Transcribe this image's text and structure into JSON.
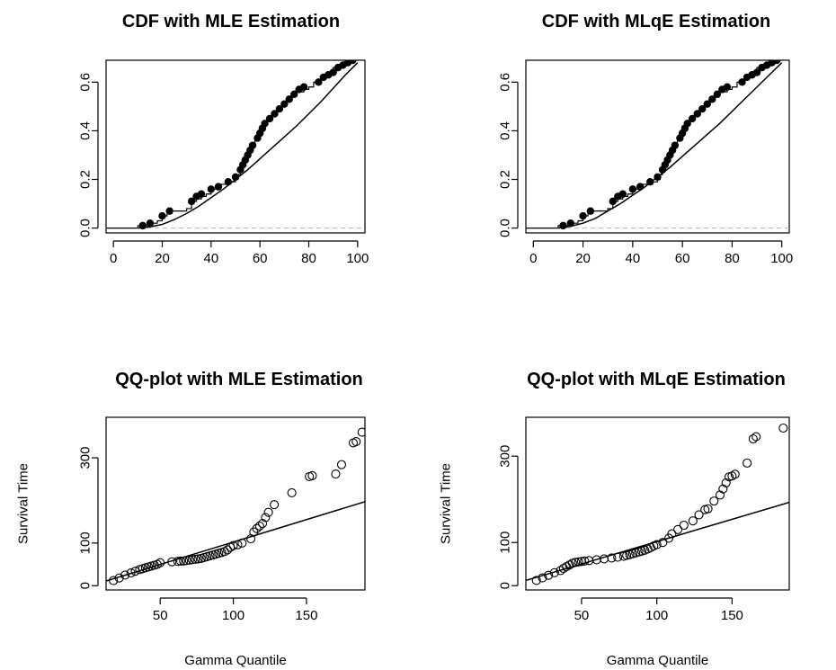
{
  "chart_data": [
    {
      "type": "line",
      "title": "CDF with MLE Estimation",
      "xlabel": "",
      "ylabel": "",
      "xlim": [
        -3,
        103
      ],
      "ylim": [
        -0.02,
        0.69
      ],
      "xticks": [
        0,
        20,
        40,
        60,
        80,
        100
      ],
      "yticks": [
        0.0,
        0.2,
        0.4,
        0.6
      ],
      "ytick_labels": [
        "0.0",
        "0.2",
        "0.4",
        "0.6"
      ],
      "baseline": 0.0,
      "empirical_step": {
        "x": [
          10,
          14,
          16,
          18,
          20,
          22,
          24,
          26,
          28,
          30,
          32,
          34,
          36,
          38,
          40,
          42,
          44,
          46,
          48,
          50,
          51,
          52,
          53,
          54,
          55,
          56,
          57,
          58,
          59,
          60,
          62,
          64,
          66,
          68,
          70,
          72,
          74,
          76,
          78,
          80,
          82,
          84,
          86,
          88,
          90,
          92,
          94,
          96,
          98,
          100
        ],
        "y": [
          0.01,
          0.02,
          0.02,
          0.03,
          0.05,
          0.06,
          0.07,
          0.07,
          0.07,
          0.08,
          0.11,
          0.12,
          0.13,
          0.14,
          0.16,
          0.17,
          0.18,
          0.18,
          0.19,
          0.2,
          0.22,
          0.24,
          0.26,
          0.28,
          0.3,
          0.32,
          0.34,
          0.37,
          0.39,
          0.42,
          0.44,
          0.46,
          0.48,
          0.5,
          0.52,
          0.54,
          0.56,
          0.56,
          0.57,
          0.58,
          0.6,
          0.61,
          0.62,
          0.64,
          0.66,
          0.67,
          0.68,
          0.69,
          0.69,
          0.69
        ]
      },
      "points": {
        "x": [
          12,
          15,
          20,
          23,
          32,
          34,
          36,
          40,
          43,
          47,
          50,
          52,
          53,
          54,
          55,
          56,
          57,
          59,
          60,
          61,
          62,
          64,
          66,
          68,
          70,
          72,
          74,
          76,
          78,
          84,
          86,
          88,
          90,
          92,
          94,
          96,
          98
        ],
        "y": [
          0.01,
          0.02,
          0.05,
          0.07,
          0.11,
          0.13,
          0.14,
          0.16,
          0.17,
          0.19,
          0.21,
          0.24,
          0.26,
          0.28,
          0.3,
          0.32,
          0.34,
          0.37,
          0.39,
          0.41,
          0.43,
          0.45,
          0.47,
          0.49,
          0.51,
          0.53,
          0.55,
          0.57,
          0.58,
          0.6,
          0.62,
          0.63,
          0.64,
          0.66,
          0.67,
          0.68,
          0.69
        ]
      },
      "fitted": {
        "x": [
          10,
          15,
          20,
          25,
          30,
          35,
          40,
          45,
          50,
          55,
          60,
          65,
          70,
          75,
          80,
          85,
          90,
          95,
          100
        ],
        "y": [
          0.0,
          0.005,
          0.015,
          0.035,
          0.06,
          0.09,
          0.125,
          0.16,
          0.2,
          0.24,
          0.285,
          0.33,
          0.375,
          0.42,
          0.47,
          0.52,
          0.575,
          0.63,
          0.68
        ]
      }
    },
    {
      "type": "line",
      "title": "CDF with MLqE Estimation",
      "xlabel": "",
      "ylabel": "",
      "xlim": [
        -3,
        103
      ],
      "ylim": [
        -0.02,
        0.69
      ],
      "xticks": [
        0,
        20,
        40,
        60,
        80,
        100
      ],
      "yticks": [
        0.0,
        0.2,
        0.4,
        0.6
      ],
      "ytick_labels": [
        "0.0",
        "0.2",
        "0.4",
        "0.6"
      ],
      "baseline": 0.0,
      "empirical_step": {
        "x": [
          10,
          14,
          16,
          18,
          20,
          22,
          24,
          26,
          28,
          30,
          32,
          34,
          36,
          38,
          40,
          42,
          44,
          46,
          48,
          50,
          51,
          52,
          53,
          54,
          55,
          56,
          57,
          58,
          59,
          60,
          62,
          64,
          66,
          68,
          70,
          72,
          74,
          76,
          78,
          80,
          82,
          84,
          86,
          88,
          90,
          92,
          94,
          96,
          98,
          100
        ],
        "y": [
          0.01,
          0.02,
          0.02,
          0.03,
          0.05,
          0.06,
          0.07,
          0.07,
          0.07,
          0.08,
          0.11,
          0.12,
          0.13,
          0.14,
          0.16,
          0.17,
          0.18,
          0.18,
          0.19,
          0.2,
          0.22,
          0.24,
          0.26,
          0.28,
          0.3,
          0.32,
          0.34,
          0.37,
          0.39,
          0.42,
          0.44,
          0.46,
          0.48,
          0.5,
          0.52,
          0.54,
          0.56,
          0.56,
          0.57,
          0.58,
          0.6,
          0.61,
          0.62,
          0.64,
          0.66,
          0.67,
          0.68,
          0.69,
          0.69,
          0.69
        ]
      },
      "points": {
        "x": [
          12,
          15,
          20,
          23,
          32,
          34,
          36,
          40,
          43,
          47,
          50,
          52,
          53,
          54,
          55,
          56,
          57,
          59,
          60,
          61,
          62,
          64,
          66,
          68,
          70,
          72,
          74,
          76,
          78,
          84,
          86,
          88,
          90,
          92,
          94,
          96,
          98
        ],
        "y": [
          0.01,
          0.02,
          0.05,
          0.07,
          0.11,
          0.13,
          0.14,
          0.16,
          0.17,
          0.19,
          0.21,
          0.24,
          0.26,
          0.28,
          0.3,
          0.32,
          0.34,
          0.37,
          0.39,
          0.41,
          0.43,
          0.45,
          0.47,
          0.49,
          0.51,
          0.53,
          0.55,
          0.57,
          0.58,
          0.6,
          0.62,
          0.63,
          0.64,
          0.66,
          0.67,
          0.68,
          0.69
        ]
      },
      "fitted": {
        "x": [
          10,
          15,
          20,
          25,
          30,
          35,
          40,
          45,
          50,
          55,
          60,
          65,
          70,
          75,
          80,
          85,
          90,
          95,
          100
        ],
        "y": [
          0.0,
          0.007,
          0.02,
          0.04,
          0.07,
          0.1,
          0.135,
          0.17,
          0.21,
          0.25,
          0.295,
          0.34,
          0.385,
          0.43,
          0.48,
          0.53,
          0.58,
          0.63,
          0.68
        ]
      }
    },
    {
      "type": "scatter",
      "title": "QQ-plot with MLE Estimation",
      "xlabel": "Gamma Quantile",
      "ylabel": "Survival Time",
      "xlim": [
        13,
        190
      ],
      "ylim": [
        -10,
        395
      ],
      "xticks": [
        50,
        100,
        150
      ],
      "yticks": [
        0,
        100,
        300
      ],
      "ytick_labels": [
        "0",
        "100",
        "300"
      ],
      "points": {
        "x": [
          18,
          22,
          26,
          30,
          33,
          36,
          38,
          40,
          42,
          44,
          46,
          48,
          50,
          58,
          62,
          64,
          66,
          68,
          70,
          72,
          74,
          76,
          78,
          80,
          82,
          84,
          86,
          88,
          90,
          92,
          94,
          96,
          98,
          100,
          103,
          106,
          112,
          114,
          116,
          118,
          120,
          122,
          124,
          128,
          140,
          152,
          154,
          170,
          174,
          182,
          184,
          188
        ],
        "y": [
          12,
          18,
          25,
          30,
          34,
          38,
          40,
          42,
          44,
          46,
          48,
          50,
          54,
          56,
          57,
          58,
          58,
          59,
          60,
          61,
          62,
          63,
          64,
          66,
          68,
          70,
          72,
          74,
          76,
          78,
          80,
          84,
          90,
          94,
          96,
          100,
          110,
          126,
          134,
          140,
          146,
          160,
          172,
          190,
          218,
          256,
          258,
          262,
          284,
          335,
          338,
          360
        ]
      },
      "reference_line": {
        "x": [
          13,
          190
        ],
        "y": [
          11,
          197
        ]
      }
    },
    {
      "type": "scatter",
      "title": "QQ-plot with MLqE Estimation",
      "xlabel": "Gamma Quantile",
      "ylabel": "Survival Time",
      "xlim": [
        13,
        188
      ],
      "ylim": [
        -10,
        390
      ],
      "xticks": [
        50,
        100,
        150
      ],
      "yticks": [
        0,
        100,
        300
      ],
      "ytick_labels": [
        "0",
        "100",
        "300"
      ],
      "points": {
        "x": [
          20,
          24,
          28,
          32,
          36,
          38,
          40,
          42,
          44,
          46,
          48,
          50,
          52,
          55,
          60,
          65,
          70,
          74,
          78,
          80,
          82,
          84,
          86,
          88,
          90,
          92,
          94,
          96,
          98,
          100,
          104,
          108,
          110,
          114,
          118,
          124,
          128,
          132,
          134,
          138,
          142,
          144,
          146,
          148,
          150,
          152,
          160,
          164,
          166,
          184
        ],
        "y": [
          12,
          18,
          24,
          30,
          35,
          40,
          44,
          48,
          52,
          54,
          55,
          56,
          57,
          58,
          60,
          62,
          64,
          66,
          68,
          70,
          72,
          74,
          76,
          78,
          80,
          82,
          85,
          88,
          92,
          95,
          100,
          110,
          120,
          130,
          140,
          150,
          164,
          176,
          178,
          196,
          210,
          224,
          238,
          252,
          254,
          258,
          284,
          340,
          345,
          365
        ]
      },
      "reference_line": {
        "x": [
          13,
          188
        ],
        "y": [
          12,
          193
        ]
      }
    }
  ]
}
